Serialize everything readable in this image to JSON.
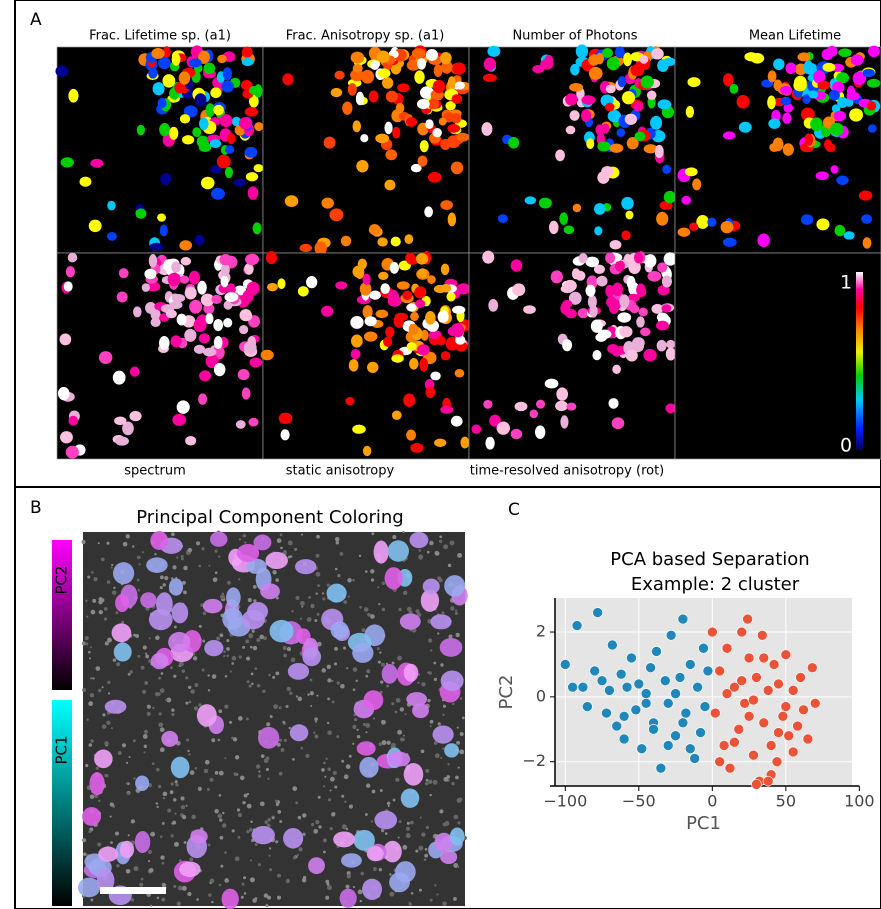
{
  "panel_a": {
    "label": "A",
    "titles": [
      "Frac. Lifetime sp. (a1)",
      "Frac. Anisotropy sp. (a1)",
      "Number of Photons",
      "Mean Lifetime"
    ],
    "bottom_labels": [
      "spectrum",
      "static anisotropy",
      "time-resolved anisotropy (rot)"
    ],
    "colorbar": {
      "max_label": "1",
      "min_label": "0"
    }
  },
  "panel_b": {
    "label": "B",
    "title": "Principal Component Coloring",
    "colorbar_labels": [
      "PC2",
      "PC1"
    ]
  },
  "panel_c": {
    "label": "C"
  },
  "chart_data": {
    "type": "scatter",
    "title": "PCA based Separation",
    "subtitle": "Example: 2 cluster",
    "x_label": "PC1",
    "y_label": "PC2",
    "xlim": [
      -107,
      95
    ],
    "ylim": [
      -2.75,
      3.05
    ],
    "xticks": [
      {
        "value": -100,
        "label": "−100"
      },
      {
        "value": -50,
        "label": "−50"
      },
      0,
      50,
      100
    ],
    "yticks": [
      {
        "value": -2,
        "label": "−2"
      },
      0,
      2
    ],
    "grid": true,
    "series": [
      {
        "color": "#1f88b8",
        "x": [
          -100,
          -95,
          -92,
          -88,
          -85,
          -80,
          -78,
          -75,
          -72,
          -70,
          -68,
          -65,
          -62,
          -60,
          -58,
          -55,
          -52,
          -50,
          -48,
          -45,
          -42,
          -40,
          -38,
          -35,
          -32,
          -30,
          -28,
          -25,
          -22,
          -20,
          -18,
          -15,
          -12,
          -10,
          -8,
          -6,
          -5,
          -3,
          -45,
          -60,
          -30,
          -20,
          -15,
          -40,
          -25
        ],
        "values": [
          1.0,
          0.3,
          2.2,
          0.3,
          -0.3,
          0.8,
          2.6,
          0.5,
          -0.5,
          0.2,
          1.6,
          -0.9,
          0.7,
          -1.3,
          0.3,
          1.2,
          -0.4,
          0.4,
          -1.6,
          0.1,
          0.9,
          -0.8,
          1.4,
          -2.2,
          0.5,
          -0.2,
          1.9,
          -1.2,
          0.6,
          2.4,
          -0.5,
          1.0,
          -1.9,
          0.3,
          -1.1,
          1.5,
          -0.3,
          0.8,
          -0.2,
          -0.6,
          -1.5,
          -0.8,
          -1.6,
          -1.0,
          0.1
        ]
      },
      {
        "color": "#ea5337",
        "x": [
          0,
          2,
          5,
          8,
          10,
          12,
          15,
          18,
          20,
          22,
          24,
          25,
          28,
          30,
          32,
          34,
          35,
          38,
          40,
          42,
          44,
          45,
          48,
          50,
          52,
          55,
          58,
          60,
          62,
          65,
          68,
          70,
          5,
          15,
          25,
          30,
          40,
          50,
          20,
          35,
          45,
          10,
          28,
          38,
          55
        ],
        "values": [
          2.0,
          -0.5,
          0.8,
          -1.5,
          1.5,
          -2.2,
          0.3,
          -1.0,
          2.0,
          -0.2,
          2.4,
          1.2,
          -1.8,
          0.6,
          -2.6,
          1.9,
          -0.8,
          0.2,
          -1.5,
          1.0,
          -2.0,
          0.4,
          -0.6,
          1.3,
          -1.2,
          0.2,
          -0.9,
          0.6,
          -0.4,
          -1.3,
          0.9,
          -0.2,
          -2.0,
          -1.4,
          -0.6,
          -2.7,
          -2.4,
          -0.3,
          0.5,
          1.2,
          -1.1,
          0.1,
          -0.1,
          -2.6,
          -1.7
        ]
      }
    ]
  }
}
